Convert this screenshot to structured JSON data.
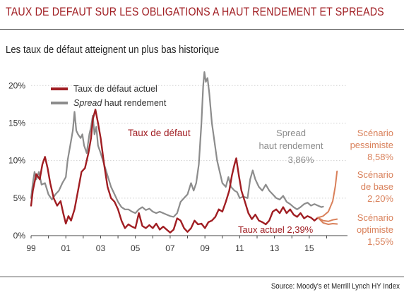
{
  "header": {
    "title": "TAUX DE DEFAUT SUR LES OBLIGATIONS A HAUT RENDEMENT ET SPREADS",
    "subtitle": "Les taux de défaut atteignent un plus bas historique",
    "source": "Source: Moody's et Merrill Lynch HY Index"
  },
  "colors": {
    "default_rate": "#a01d22",
    "spread": "#8c8c8c",
    "scenario": "#d9805a",
    "accent": "#a01d22"
  },
  "chart_data": {
    "type": "line",
    "x_tick_labels": [
      "99",
      "01",
      "03",
      "05",
      "07",
      "09",
      "11",
      "13",
      "15"
    ],
    "y_tick_labels": [
      "0%",
      "5%",
      "10%",
      "15%",
      "20%"
    ],
    "xlim": [
      1999.0,
      2017.2
    ],
    "ylim": [
      0,
      22
    ],
    "legend": {
      "position": "top-left",
      "entries": [
        {
          "label": "Taux de défaut actuel",
          "color": "#a01d22"
        },
        {
          "label_italic": "Spread",
          "label_rest": " haut rendement",
          "color": "#8c8c8c"
        }
      ]
    },
    "annotations": {
      "default_label": "Taux de défaut",
      "spread_label_line1": "Spread",
      "spread_label_line2": "haut rendement",
      "spread_value": "3,86%",
      "current_label": "Taux actuel 2,39%",
      "pessimistic_line1": "Scénario",
      "pessimistic_line2": "pessimiste",
      "pessimistic_value": "8,58%",
      "base_line1": "Scénario",
      "base_line2": "de base",
      "base_value": "2,20%",
      "optimistic_line1": "Scénario",
      "optimistic_line2": "optimiste",
      "optimistic_value": "1,55%"
    },
    "series": [
      {
        "name": "Taux de défaut actuel",
        "color": "#a01d22",
        "points": [
          [
            1999.0,
            4.0
          ],
          [
            1999.1,
            6.0
          ],
          [
            1999.3,
            8.2
          ],
          [
            1999.5,
            7.5
          ],
          [
            1999.65,
            9.5
          ],
          [
            1999.8,
            10.5
          ],
          [
            1999.95,
            9.0
          ],
          [
            2000.1,
            7.0
          ],
          [
            2000.3,
            5.0
          ],
          [
            2000.5,
            4.0
          ],
          [
            2000.7,
            4.6
          ],
          [
            2000.85,
            3.0
          ],
          [
            2001.0,
            1.6
          ],
          [
            2001.15,
            2.6
          ],
          [
            2001.3,
            2.0
          ],
          [
            2001.5,
            3.5
          ],
          [
            2001.7,
            6.0
          ],
          [
            2001.9,
            8.5
          ],
          [
            2002.1,
            9.0
          ],
          [
            2002.3,
            11.0
          ],
          [
            2002.45,
            13.0
          ],
          [
            2002.55,
            15.5
          ],
          [
            2002.7,
            16.8
          ],
          [
            2002.85,
            15.0
          ],
          [
            2003.0,
            13.0
          ],
          [
            2003.2,
            9.5
          ],
          [
            2003.4,
            6.5
          ],
          [
            2003.6,
            5.0
          ],
          [
            2003.8,
            4.5
          ],
          [
            2004.0,
            3.5
          ],
          [
            2004.2,
            2.0
          ],
          [
            2004.4,
            1.0
          ],
          [
            2004.6,
            1.5
          ],
          [
            2004.8,
            1.2
          ],
          [
            2005.0,
            1.0
          ],
          [
            2005.2,
            3.0
          ],
          [
            2005.4,
            1.3
          ],
          [
            2005.6,
            1.0
          ],
          [
            2005.8,
            1.4
          ],
          [
            2006.0,
            1.0
          ],
          [
            2006.2,
            1.6
          ],
          [
            2006.4,
            0.8
          ],
          [
            2006.6,
            1.2
          ],
          [
            2006.8,
            0.8
          ],
          [
            2007.0,
            0.4
          ],
          [
            2007.2,
            0.8
          ],
          [
            2007.4,
            2.3
          ],
          [
            2007.6,
            2.0
          ],
          [
            2007.8,
            1.0
          ],
          [
            2008.0,
            0.5
          ],
          [
            2008.2,
            1.0
          ],
          [
            2008.4,
            2.0
          ],
          [
            2008.6,
            1.5
          ],
          [
            2008.8,
            1.6
          ],
          [
            2009.0,
            1.0
          ],
          [
            2009.2,
            1.8
          ],
          [
            2009.4,
            2.0
          ],
          [
            2009.6,
            2.5
          ],
          [
            2009.8,
            3.5
          ],
          [
            2010.0,
            3.2
          ],
          [
            2010.2,
            4.5
          ],
          [
            2010.4,
            6.0
          ],
          [
            2010.55,
            8.0
          ],
          [
            2010.7,
            9.5
          ],
          [
            2010.8,
            10.3
          ],
          [
            2010.95,
            8.0
          ],
          [
            2011.1,
            6.0
          ],
          [
            2011.3,
            4.5
          ],
          [
            2011.5,
            3.0
          ],
          [
            2011.7,
            2.2
          ],
          [
            2011.9,
            2.8
          ],
          [
            2012.1,
            2.0
          ],
          [
            2012.3,
            1.8
          ],
          [
            2012.5,
            1.5
          ],
          [
            2012.7,
            2.0
          ],
          [
            2012.9,
            3.2
          ],
          [
            2013.1,
            3.5
          ],
          [
            2013.3,
            3.0
          ],
          [
            2013.5,
            3.8
          ],
          [
            2013.7,
            3.0
          ],
          [
            2013.9,
            3.5
          ],
          [
            2014.1,
            2.8
          ],
          [
            2014.3,
            2.5
          ],
          [
            2014.5,
            3.0
          ],
          [
            2014.7,
            2.3
          ],
          [
            2014.9,
            2.6
          ],
          [
            2015.1,
            2.4
          ],
          [
            2015.3,
            2.0
          ],
          [
            2015.5,
            2.4
          ]
        ]
      },
      {
        "name": "Spread haut rendement",
        "color": "#8c8c8c",
        "points": [
          [
            1999.0,
            5.0
          ],
          [
            1999.1,
            7.0
          ],
          [
            1999.2,
            8.5
          ],
          [
            1999.3,
            7.5
          ],
          [
            1999.45,
            8.5
          ],
          [
            1999.6,
            6.8
          ],
          [
            1999.8,
            7.0
          ],
          [
            2000.0,
            5.5
          ],
          [
            2000.2,
            4.8
          ],
          [
            2000.4,
            5.5
          ],
          [
            2000.6,
            6.0
          ],
          [
            2000.8,
            7.0
          ],
          [
            2001.0,
            7.8
          ],
          [
            2001.1,
            10.0
          ],
          [
            2001.25,
            12.0
          ],
          [
            2001.4,
            14.0
          ],
          [
            2001.5,
            16.5
          ],
          [
            2001.6,
            14.0
          ],
          [
            2001.7,
            13.5
          ],
          [
            2001.85,
            13.0
          ],
          [
            2001.95,
            13.5
          ],
          [
            2002.05,
            12.0
          ],
          [
            2002.2,
            11.0
          ],
          [
            2002.35,
            13.5
          ],
          [
            2002.45,
            14.5
          ],
          [
            2002.55,
            16.0
          ],
          [
            2002.65,
            13.5
          ],
          [
            2002.75,
            14.5
          ],
          [
            2002.85,
            12.0
          ],
          [
            2003.0,
            11.0
          ],
          [
            2003.2,
            9.5
          ],
          [
            2003.4,
            8.0
          ],
          [
            2003.6,
            6.5
          ],
          [
            2003.8,
            5.5
          ],
          [
            2004.0,
            4.5
          ],
          [
            2004.2,
            3.8
          ],
          [
            2004.4,
            3.5
          ],
          [
            2004.6,
            3.5
          ],
          [
            2004.8,
            3.2
          ],
          [
            2005.0,
            3.0
          ],
          [
            2005.2,
            3.5
          ],
          [
            2005.4,
            3.8
          ],
          [
            2005.6,
            3.4
          ],
          [
            2005.8,
            3.6
          ],
          [
            2006.0,
            3.2
          ],
          [
            2006.2,
            3.0
          ],
          [
            2006.4,
            3.2
          ],
          [
            2006.6,
            3.0
          ],
          [
            2006.8,
            2.8
          ],
          [
            2007.0,
            2.6
          ],
          [
            2007.2,
            2.5
          ],
          [
            2007.4,
            3.0
          ],
          [
            2007.6,
            4.5
          ],
          [
            2007.8,
            5.0
          ],
          [
            2008.0,
            5.5
          ],
          [
            2008.2,
            7.0
          ],
          [
            2008.35,
            6.0
          ],
          [
            2008.5,
            7.0
          ],
          [
            2008.65,
            9.5
          ],
          [
            2008.8,
            15.0
          ],
          [
            2008.9,
            20.0
          ],
          [
            2008.97,
            21.8
          ],
          [
            2009.05,
            20.5
          ],
          [
            2009.15,
            21.0
          ],
          [
            2009.25,
            19.0
          ],
          [
            2009.4,
            15.0
          ],
          [
            2009.55,
            12.5
          ],
          [
            2009.7,
            10.0
          ],
          [
            2009.85,
            8.5
          ],
          [
            2010.0,
            7.0
          ],
          [
            2010.2,
            6.5
          ],
          [
            2010.35,
            7.8
          ],
          [
            2010.5,
            6.5
          ],
          [
            2010.7,
            6.0
          ],
          [
            2010.85,
            5.8
          ],
          [
            2011.0,
            5.0
          ],
          [
            2011.2,
            5.2
          ],
          [
            2011.45,
            5.0
          ],
          [
            2011.6,
            7.5
          ],
          [
            2011.75,
            8.7
          ],
          [
            2011.9,
            7.5
          ],
          [
            2012.1,
            6.5
          ],
          [
            2012.3,
            6.0
          ],
          [
            2012.5,
            6.8
          ],
          [
            2012.7,
            6.0
          ],
          [
            2012.9,
            5.5
          ],
          [
            2013.1,
            5.0
          ],
          [
            2013.3,
            4.8
          ],
          [
            2013.5,
            5.3
          ],
          [
            2013.7,
            4.5
          ],
          [
            2013.9,
            4.2
          ],
          [
            2014.1,
            3.8
          ],
          [
            2014.3,
            3.5
          ],
          [
            2014.5,
            3.8
          ],
          [
            2014.7,
            4.2
          ],
          [
            2014.9,
            4.4
          ],
          [
            2015.1,
            4.0
          ],
          [
            2015.3,
            4.2
          ],
          [
            2015.5,
            4.0
          ],
          [
            2015.7,
            3.8
          ],
          [
            2015.8,
            3.86
          ]
        ]
      },
      {
        "name": "Scénario pessimiste",
        "color": "#d9805a",
        "points": [
          [
            2015.5,
            2.4
          ],
          [
            2015.8,
            2.6
          ],
          [
            2016.1,
            3.2
          ],
          [
            2016.35,
            4.6
          ],
          [
            2016.5,
            6.6
          ],
          [
            2016.6,
            8.58
          ]
        ]
      },
      {
        "name": "Scénario de base",
        "color": "#d9805a",
        "points": [
          [
            2015.5,
            2.4
          ],
          [
            2015.8,
            2.0
          ],
          [
            2016.1,
            1.9
          ],
          [
            2016.35,
            2.1
          ],
          [
            2016.6,
            2.2
          ]
        ]
      },
      {
        "name": "Scénario optimiste",
        "color": "#d9805a",
        "points": [
          [
            2015.5,
            2.4
          ],
          [
            2015.8,
            1.7
          ],
          [
            2016.1,
            1.5
          ],
          [
            2016.35,
            1.6
          ],
          [
            2016.6,
            1.55
          ]
        ]
      }
    ]
  }
}
